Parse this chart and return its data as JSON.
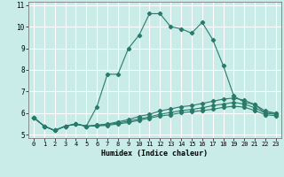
{
  "xlabel": "Humidex (Indice chaleur)",
  "ylabel": "",
  "bg_color": "#c9ece9",
  "grid_color": "#ffffff",
  "line_color": "#2a7a6a",
  "x_values": [
    0,
    1,
    2,
    3,
    4,
    5,
    6,
    7,
    8,
    9,
    10,
    11,
    12,
    13,
    14,
    15,
    16,
    17,
    18,
    19,
    20,
    21,
    22,
    23
  ],
  "series": [
    [
      5.8,
      5.4,
      5.2,
      5.4,
      5.5,
      5.4,
      6.3,
      7.8,
      7.8,
      9.0,
      9.6,
      10.6,
      10.6,
      10.0,
      9.9,
      9.7,
      10.2,
      9.4,
      8.2,
      6.8,
      6.5,
      6.4,
      6.0,
      6.0
    ],
    [
      5.8,
      5.4,
      5.2,
      5.4,
      5.5,
      5.4,
      5.45,
      5.5,
      5.6,
      5.7,
      5.85,
      5.95,
      6.1,
      6.2,
      6.3,
      6.35,
      6.45,
      6.55,
      6.65,
      6.7,
      6.6,
      6.4,
      6.1,
      6.0
    ],
    [
      5.8,
      5.4,
      5.2,
      5.4,
      5.5,
      5.4,
      5.43,
      5.47,
      5.55,
      5.63,
      5.73,
      5.83,
      5.95,
      6.03,
      6.12,
      6.17,
      6.25,
      6.35,
      6.42,
      6.5,
      6.42,
      6.25,
      6.0,
      5.95
    ],
    [
      5.8,
      5.4,
      5.2,
      5.4,
      5.5,
      5.4,
      5.41,
      5.44,
      5.5,
      5.57,
      5.67,
      5.77,
      5.87,
      5.93,
      6.02,
      6.07,
      6.12,
      6.18,
      6.27,
      6.32,
      6.28,
      6.12,
      5.93,
      5.88
    ]
  ],
  "ylim": [
    4.85,
    11.15
  ],
  "xlim": [
    -0.5,
    23.5
  ],
  "yticks": [
    5,
    6,
    7,
    8,
    9,
    10,
    11
  ],
  "xticks": [
    0,
    1,
    2,
    3,
    4,
    5,
    6,
    7,
    8,
    9,
    10,
    11,
    12,
    13,
    14,
    15,
    16,
    17,
    18,
    19,
    20,
    21,
    22,
    23
  ],
  "markersize": 2.2,
  "linewidth": 0.8
}
